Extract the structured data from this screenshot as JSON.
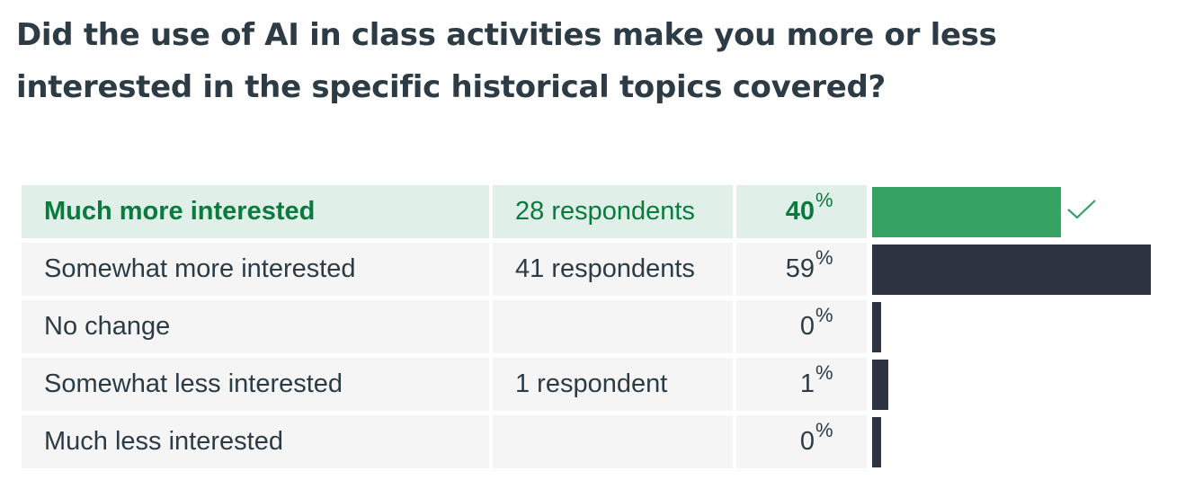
{
  "question": "Did the use of AI in class activities make you more or less interested in the specific historical topics covered?",
  "colors": {
    "correct_bar": "#35a264",
    "bar": "#2d3340",
    "correct_text": "#0b7a3e",
    "correct_bg": "#e0efe8",
    "row_bg": "#f5f5f5"
  },
  "icons": {
    "correct_marker": "check-icon"
  },
  "chart_data": {
    "type": "bar",
    "orientation": "horizontal",
    "categories": [
      "Much more interested",
      "Somewhat more interested",
      "No change",
      "Somewhat less interested",
      "Much less interested"
    ],
    "values": [
      40,
      59,
      0,
      1,
      0
    ],
    "unit": "%",
    "counts": [
      "28 respondents",
      "41 respondents",
      "",
      "1 respondent",
      ""
    ],
    "correct_index": 0
  },
  "answers": [
    {
      "label": "Much more interested",
      "count": "28 respondents",
      "pct": "40",
      "pct_sign": "%",
      "value": 40,
      "correct": true
    },
    {
      "label": "Somewhat more interested",
      "count": "41 respondents",
      "pct": "59",
      "pct_sign": "%",
      "value": 59,
      "correct": false
    },
    {
      "label": "No change",
      "count": "",
      "pct": "0",
      "pct_sign": "%",
      "value": 0,
      "correct": false
    },
    {
      "label": "Somewhat less interested",
      "count": "1 respondent",
      "pct": "1",
      "pct_sign": "%",
      "value": 1,
      "correct": false
    },
    {
      "label": "Much less interested",
      "count": "",
      "pct": "0",
      "pct_sign": "%",
      "value": 0,
      "correct": false
    }
  ]
}
